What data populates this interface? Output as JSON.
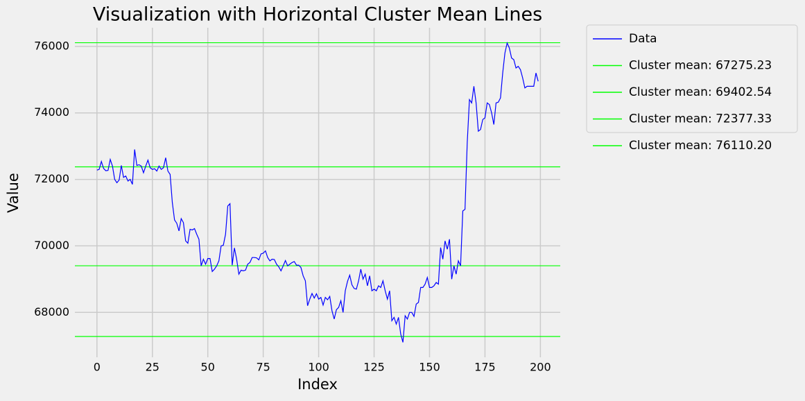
{
  "chart_data": {
    "type": "line",
    "title": "Visualization with Horizontal Cluster Mean Lines",
    "xlabel": "Index",
    "ylabel": "Value",
    "x": [
      0,
      1,
      2,
      3,
      4,
      5,
      6,
      7,
      8,
      9,
      10,
      11,
      12,
      13,
      14,
      15,
      16,
      17,
      18,
      19,
      20,
      21,
      22,
      23,
      24,
      25,
      26,
      27,
      28,
      29,
      30,
      31,
      32,
      33,
      34,
      35,
      36,
      37,
      38,
      39,
      40,
      41,
      42,
      43,
      44,
      45,
      46,
      47,
      48,
      49,
      50,
      51,
      52,
      53,
      54,
      55,
      56,
      57,
      58,
      59,
      60,
      61,
      62,
      63,
      64,
      65,
      66,
      67,
      68,
      69,
      70,
      71,
      72,
      73,
      74,
      75,
      76,
      77,
      78,
      79,
      80,
      81,
      82,
      83,
      84,
      85,
      86,
      87,
      88,
      89,
      90,
      91,
      92,
      93,
      94,
      95,
      96,
      97,
      98,
      99,
      100,
      101,
      102,
      103,
      104,
      105,
      106,
      107,
      108,
      109,
      110,
      111,
      112,
      113,
      114,
      115,
      116,
      117,
      118,
      119,
      120,
      121,
      122,
      123,
      124,
      125,
      126,
      127,
      128,
      129,
      130,
      131,
      132,
      133,
      134,
      135,
      136,
      137,
      138,
      139,
      140,
      141,
      142,
      143,
      144,
      145,
      146,
      147,
      148,
      149,
      150,
      151,
      152,
      153,
      154,
      155,
      156,
      157,
      158,
      159,
      160,
      161,
      162,
      163,
      164,
      165,
      166,
      167,
      168,
      169,
      170,
      171,
      172,
      173,
      174,
      175,
      176,
      177,
      178,
      179,
      180,
      181,
      182,
      183,
      184,
      185,
      186,
      187,
      188,
      189,
      190,
      191,
      192,
      193,
      194,
      195,
      196,
      197,
      198,
      199
    ],
    "series": [
      {
        "name": "Data",
        "color": "#0000ff",
        "values": [
          72280,
          72300,
          72540,
          72330,
          72260,
          72270,
          72600,
          72400,
          72000,
          71900,
          71980,
          72420,
          72060,
          72100,
          71950,
          72000,
          71850,
          72900,
          72420,
          72440,
          72400,
          72200,
          72400,
          72580,
          72350,
          72300,
          72320,
          72250,
          72400,
          72300,
          72350,
          72650,
          72250,
          72150,
          71300,
          70780,
          70680,
          70450,
          70820,
          70700,
          70150,
          70080,
          70500,
          70480,
          70520,
          70350,
          70200,
          69400,
          69600,
          69450,
          69620,
          69620,
          69230,
          69300,
          69400,
          69550,
          70000,
          70020,
          70350,
          71200,
          71270,
          69420,
          69940,
          69600,
          69150,
          69270,
          69250,
          69270,
          69450,
          69500,
          69650,
          69650,
          69640,
          69580,
          69760,
          69780,
          69850,
          69650,
          69550,
          69600,
          69590,
          69450,
          69370,
          69250,
          69400,
          69560,
          69400,
          69450,
          69500,
          69530,
          69420,
          69420,
          69350,
          69100,
          68950,
          68200,
          68400,
          68570,
          68430,
          68560,
          68400,
          68450,
          68220,
          68450,
          68380,
          68480,
          68050,
          67800,
          68080,
          68150,
          68350,
          68000,
          68650,
          68930,
          69120,
          68830,
          68720,
          68700,
          68950,
          69300,
          69000,
          69150,
          68800,
          69100,
          68650,
          68700,
          68650,
          68800,
          68750,
          68950,
          68650,
          68400,
          68650,
          67750,
          67850,
          67650,
          67850,
          67350,
          67100,
          67900,
          67800,
          68000,
          68000,
          67880,
          68250,
          68300,
          68750,
          68750,
          68850,
          69050,
          68750,
          68750,
          68800,
          68900,
          68850,
          69950,
          69600,
          70150,
          69900,
          70200,
          69000,
          69400,
          69150,
          69550,
          69400,
          71050,
          71100,
          73100,
          74400,
          74300,
          74800,
          74300,
          73450,
          73500,
          73800,
          73850,
          74300,
          74250,
          74000,
          73650,
          74300,
          74320,
          74450,
          75200,
          75800,
          76100,
          75950,
          75650,
          75600,
          75350,
          75400,
          75300,
          75050,
          74750,
          74800,
          74800,
          74800,
          74800,
          75200,
          74950
        ]
      }
    ],
    "hlines": [
      {
        "name": "Cluster mean: 67275.23",
        "value": 67275.23,
        "color": "#00ff00"
      },
      {
        "name": "Cluster mean: 69402.54",
        "value": 69402.54,
        "color": "#00ff00"
      },
      {
        "name": "Cluster mean: 72377.33",
        "value": 72377.33,
        "color": "#00ff00"
      },
      {
        "name": "Cluster mean: 76110.20",
        "value": 76110.2,
        "color": "#00ff00"
      }
    ],
    "xlim": [
      -9.95,
      208.95
    ],
    "ylim": [
      66650,
      76560
    ],
    "xticks": [
      0,
      25,
      50,
      75,
      100,
      125,
      150,
      175,
      200
    ],
    "yticks": [
      68000,
      70000,
      72000,
      74000,
      76000
    ],
    "grid": true,
    "legend": "outside upper right"
  }
}
